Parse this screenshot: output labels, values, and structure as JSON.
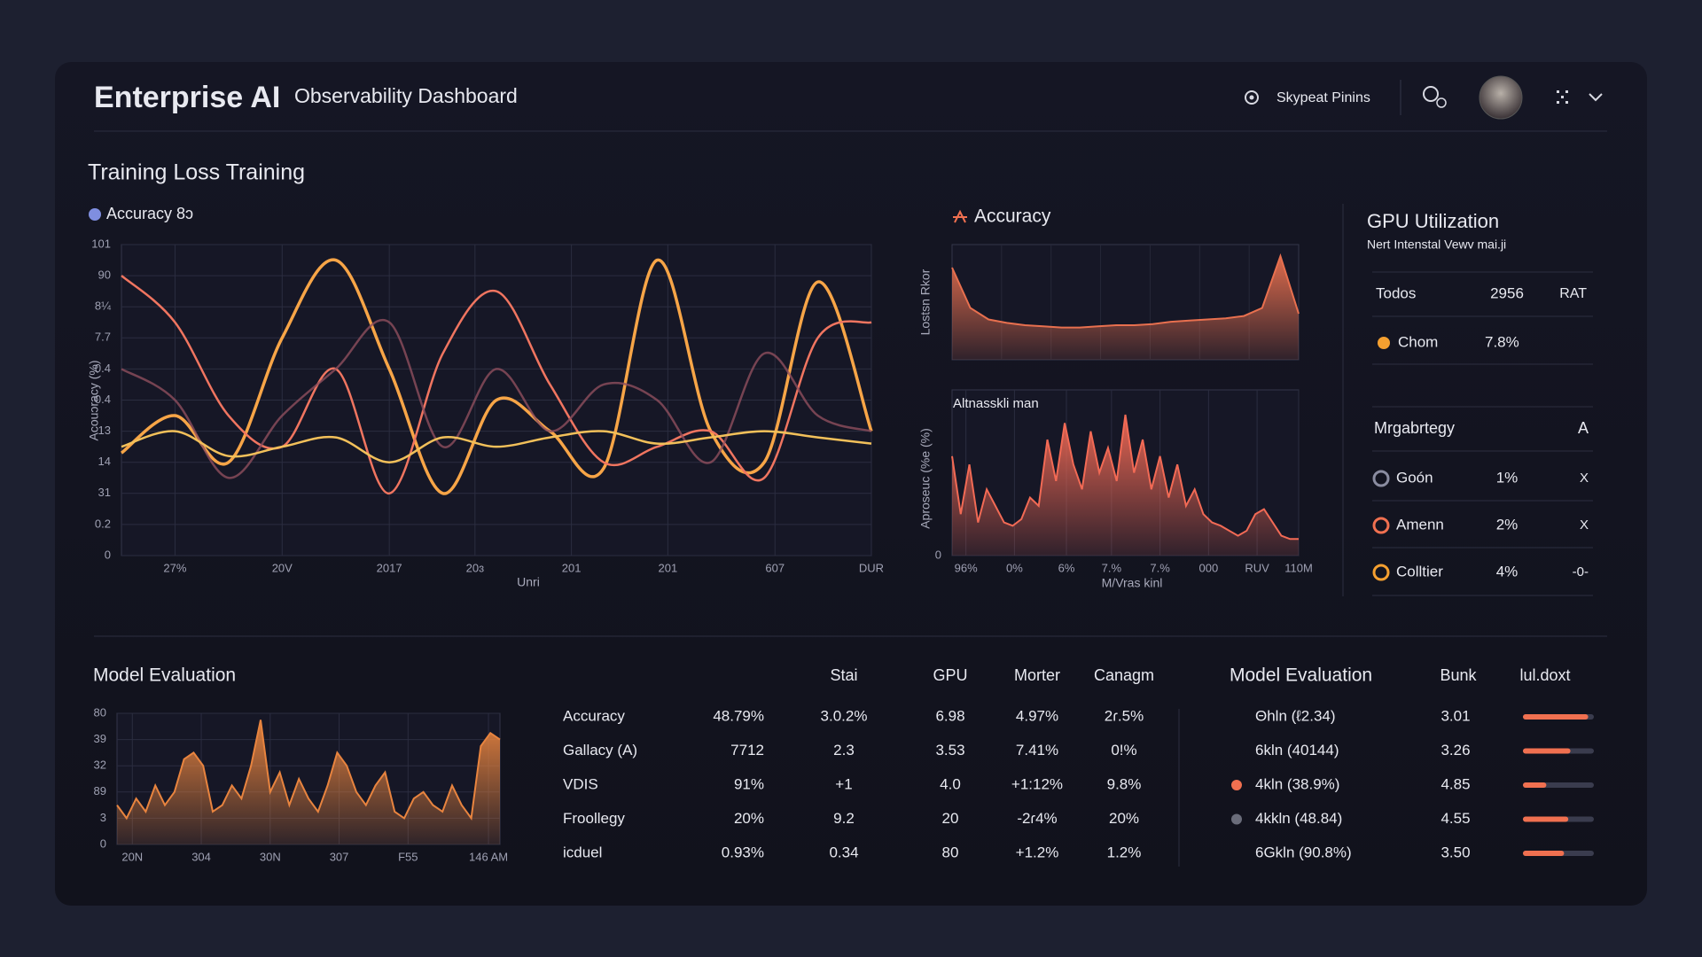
{
  "header": {
    "brand": "Enterprise AI",
    "title": "Observability Dashboard",
    "user": "Skypeat Pinins"
  },
  "sections": {
    "training": "Training Loss Training"
  },
  "chart_data": [
    {
      "type": "line",
      "legend": "Accuracy 8ↄ",
      "ylabel": "Acouɔracy (%)",
      "xlabel": "Unri",
      "x": [
        0,
        5,
        10,
        15,
        20,
        25,
        30,
        35,
        40,
        45,
        50,
        55,
        60,
        65,
        70
      ],
      "xlim": [
        0,
        70
      ],
      "ylim": [
        0,
        100
      ],
      "xticks": [
        {
          "value": 5,
          "label": "27%"
        },
        {
          "value": 15,
          "label": "20V"
        },
        {
          "value": 25,
          "label": "2017"
        },
        {
          "value": 33,
          "label": "20ɜ"
        },
        {
          "value": 42,
          "label": "201"
        },
        {
          "value": 51,
          "label": "201"
        },
        {
          "value": 61,
          "label": "607"
        },
        {
          "value": 70,
          "label": "DUR"
        }
      ],
      "yticks": [
        {
          "value": 100,
          "label": "101"
        },
        90,
        {
          "value": 80,
          "label": "8¼"
        },
        {
          "value": 70,
          "label": "7.7"
        },
        {
          "value": 60,
          "label": "0.4"
        },
        {
          "value": 50,
          "label": "0.4"
        },
        {
          "value": 40,
          "label": "13"
        },
        {
          "value": 30,
          "label": "14"
        },
        {
          "value": 20,
          "label": "31"
        },
        {
          "value": 10,
          "label": "0.2"
        },
        0
      ],
      "grid": true,
      "series": [
        {
          "color": "#f7a547",
          "values": [
            33,
            45,
            30,
            70,
            95,
            60,
            20,
            50,
            40,
            28,
            95,
            40,
            30,
            88,
            40
          ]
        },
        {
          "color": "#f07560",
          "values": [
            90,
            75,
            45,
            35,
            60,
            20,
            65,
            85,
            55,
            30,
            35,
            40,
            25,
            70,
            75
          ]
        },
        {
          "color": "#8f4f5e",
          "values": [
            60,
            50,
            25,
            45,
            60,
            75,
            35,
            60,
            40,
            55,
            50,
            30,
            65,
            45,
            40
          ]
        },
        {
          "color": "#f2c05a",
          "values": [
            35,
            40,
            32,
            35,
            38,
            30,
            38,
            35,
            38,
            40,
            36,
            38,
            40,
            38,
            36
          ]
        }
      ]
    },
    {
      "type": "area",
      "title": "Accuracy",
      "ylabel": "Lostsn Rkor",
      "ylim": [
        0,
        100
      ],
      "color": "#e8704f",
      "values": [
        80,
        45,
        35,
        32,
        30,
        29,
        28,
        28,
        29,
        30,
        30,
        31,
        33,
        34,
        35,
        36,
        38,
        45,
        90,
        40
      ]
    },
    {
      "type": "area",
      "title": "Altnasskli man",
      "ylabel": "Aproseuc (%e (%)",
      "xlabel": "M/Vras kinl",
      "x": [
        0,
        2.5,
        5,
        7.5,
        10,
        12.5,
        15,
        17.5,
        20,
        22.5,
        25,
        27.5,
        30,
        32.5,
        35,
        37.5,
        40,
        42.5,
        45,
        47.5,
        50,
        52.5,
        55,
        57.5,
        60,
        62.5,
        65,
        67.5,
        70,
        72.5,
        75,
        77.5,
        80,
        82.5,
        85,
        87.5,
        90,
        92.5,
        95,
        97.5,
        100
      ],
      "xlim": [
        0,
        100
      ],
      "ylim": [
        0,
        100
      ],
      "xticks": [
        {
          "value": 4,
          "label": "96%"
        },
        {
          "value": 18,
          "label": "0%"
        },
        {
          "value": 33,
          "label": "6%"
        },
        {
          "value": 46,
          "label": "7.%"
        },
        {
          "value": 60,
          "label": "7.%"
        },
        {
          "value": 74,
          "label": "000"
        },
        {
          "value": 88,
          "label": "RUV"
        },
        {
          "value": 100,
          "label": "110M"
        }
      ],
      "yticks": [
        0
      ],
      "grid": true,
      "color": "#f26a55",
      "values": [
        60,
        25,
        55,
        20,
        40,
        30,
        20,
        18,
        22,
        35,
        30,
        70,
        45,
        80,
        55,
        40,
        75,
        50,
        65,
        45,
        85,
        50,
        70,
        40,
        60,
        35,
        55,
        30,
        40,
        25,
        20,
        18,
        15,
        12,
        15,
        25,
        28,
        20,
        12,
        10,
        10
      ]
    },
    {
      "type": "area",
      "title": "Model Evaluation",
      "x": [
        0,
        2.5,
        5,
        7.5,
        10,
        12.5,
        15,
        17.5,
        20,
        22.5,
        25,
        27.5,
        30,
        32.5,
        35,
        37.5,
        40,
        42.5,
        45,
        47.5,
        50,
        52.5,
        55,
        57.5,
        60,
        62.5,
        65,
        67.5,
        70,
        72.5,
        75,
        77.5,
        80,
        82.5,
        85,
        87.5,
        90,
        92.5,
        95,
        97.5,
        100
      ],
      "xlim": [
        0,
        100
      ],
      "ylim": [
        0,
        100
      ],
      "xticks": [
        {
          "value": 4,
          "label": "20N"
        },
        {
          "value": 22,
          "label": "304"
        },
        {
          "value": 40,
          "label": "30N"
        },
        {
          "value": 58,
          "label": "307"
        },
        {
          "value": 76,
          "label": "F55"
        },
        {
          "value": 97,
          "label": "146 AM"
        }
      ],
      "yticks": [
        {
          "value": 100,
          "label": "80"
        },
        {
          "value": 80,
          "label": "39"
        },
        {
          "value": 60,
          "label": "32"
        },
        {
          "value": 40,
          "label": "89"
        },
        {
          "value": 20,
          "label": "3"
        },
        0
      ],
      "grid": true,
      "color": "#e8843f",
      "values": [
        30,
        20,
        35,
        25,
        45,
        30,
        40,
        65,
        70,
        60,
        25,
        30,
        45,
        35,
        60,
        95,
        40,
        55,
        30,
        50,
        35,
        25,
        45,
        70,
        60,
        40,
        30,
        45,
        55,
        25,
        20,
        35,
        40,
        30,
        25,
        45,
        30,
        20,
        75,
        85,
        80
      ]
    }
  ],
  "gpu": {
    "title": "GPU Utilization",
    "subtitle": "Nert Intenstal Vewv mai.ji",
    "summary": [
      [
        "Todos",
        "2956",
        "RAT"
      ],
      [
        "Chom",
        "7.8%"
      ]
    ],
    "group": [
      "Mrgabrtegy",
      "A"
    ],
    "rows": [
      [
        "Goón",
        "1%",
        "X"
      ],
      [
        "Amenn",
        "2%",
        "X"
      ],
      [
        "Colltier",
        "4%",
        "-0-"
      ]
    ]
  },
  "table": {
    "headers": [
      "Stai",
      "GPU",
      "Morter",
      "Canagm"
    ],
    "rows": [
      [
        "Accuracy",
        "48.79%",
        "3.0.2%",
        "6.98",
        "4.97%",
        "2ɾ.5%"
      ],
      [
        "Gallacy (A)",
        "7712",
        "2.3",
        "3.53",
        "7.41%",
        "0!%"
      ],
      [
        "VDIS",
        "91%",
        "+1",
        "4.0",
        "+1:12%",
        "9.8%"
      ],
      [
        "Froollegy",
        "20%",
        "9.2",
        "20",
        "-2ɾ4%",
        "20%"
      ],
      [
        "icduel",
        "0.93%",
        "0.34",
        "80",
        "+1.2%",
        "1.2%"
      ]
    ]
  },
  "evaluation": {
    "title": "Model Evaluation",
    "headers": [
      "Bunk",
      "lul.doxt"
    ],
    "rows": [
      {
        "name": "Θhln (ℓ2.34)",
        "value": "3.01",
        "progress": 92
      },
      {
        "name": "6kln (40144)",
        "value": "3.26",
        "progress": 67
      },
      {
        "name": "4kln (38.9%)",
        "value": "4.85",
        "progress": 33,
        "marker": "#f07050"
      },
      {
        "name": "4kkln (48.84)",
        "value": "4.55",
        "progress": 64,
        "marker": "#6a6c7a"
      },
      {
        "name": "6Gkln (90.8%)",
        "value": "3.50",
        "progress": 58
      }
    ]
  }
}
